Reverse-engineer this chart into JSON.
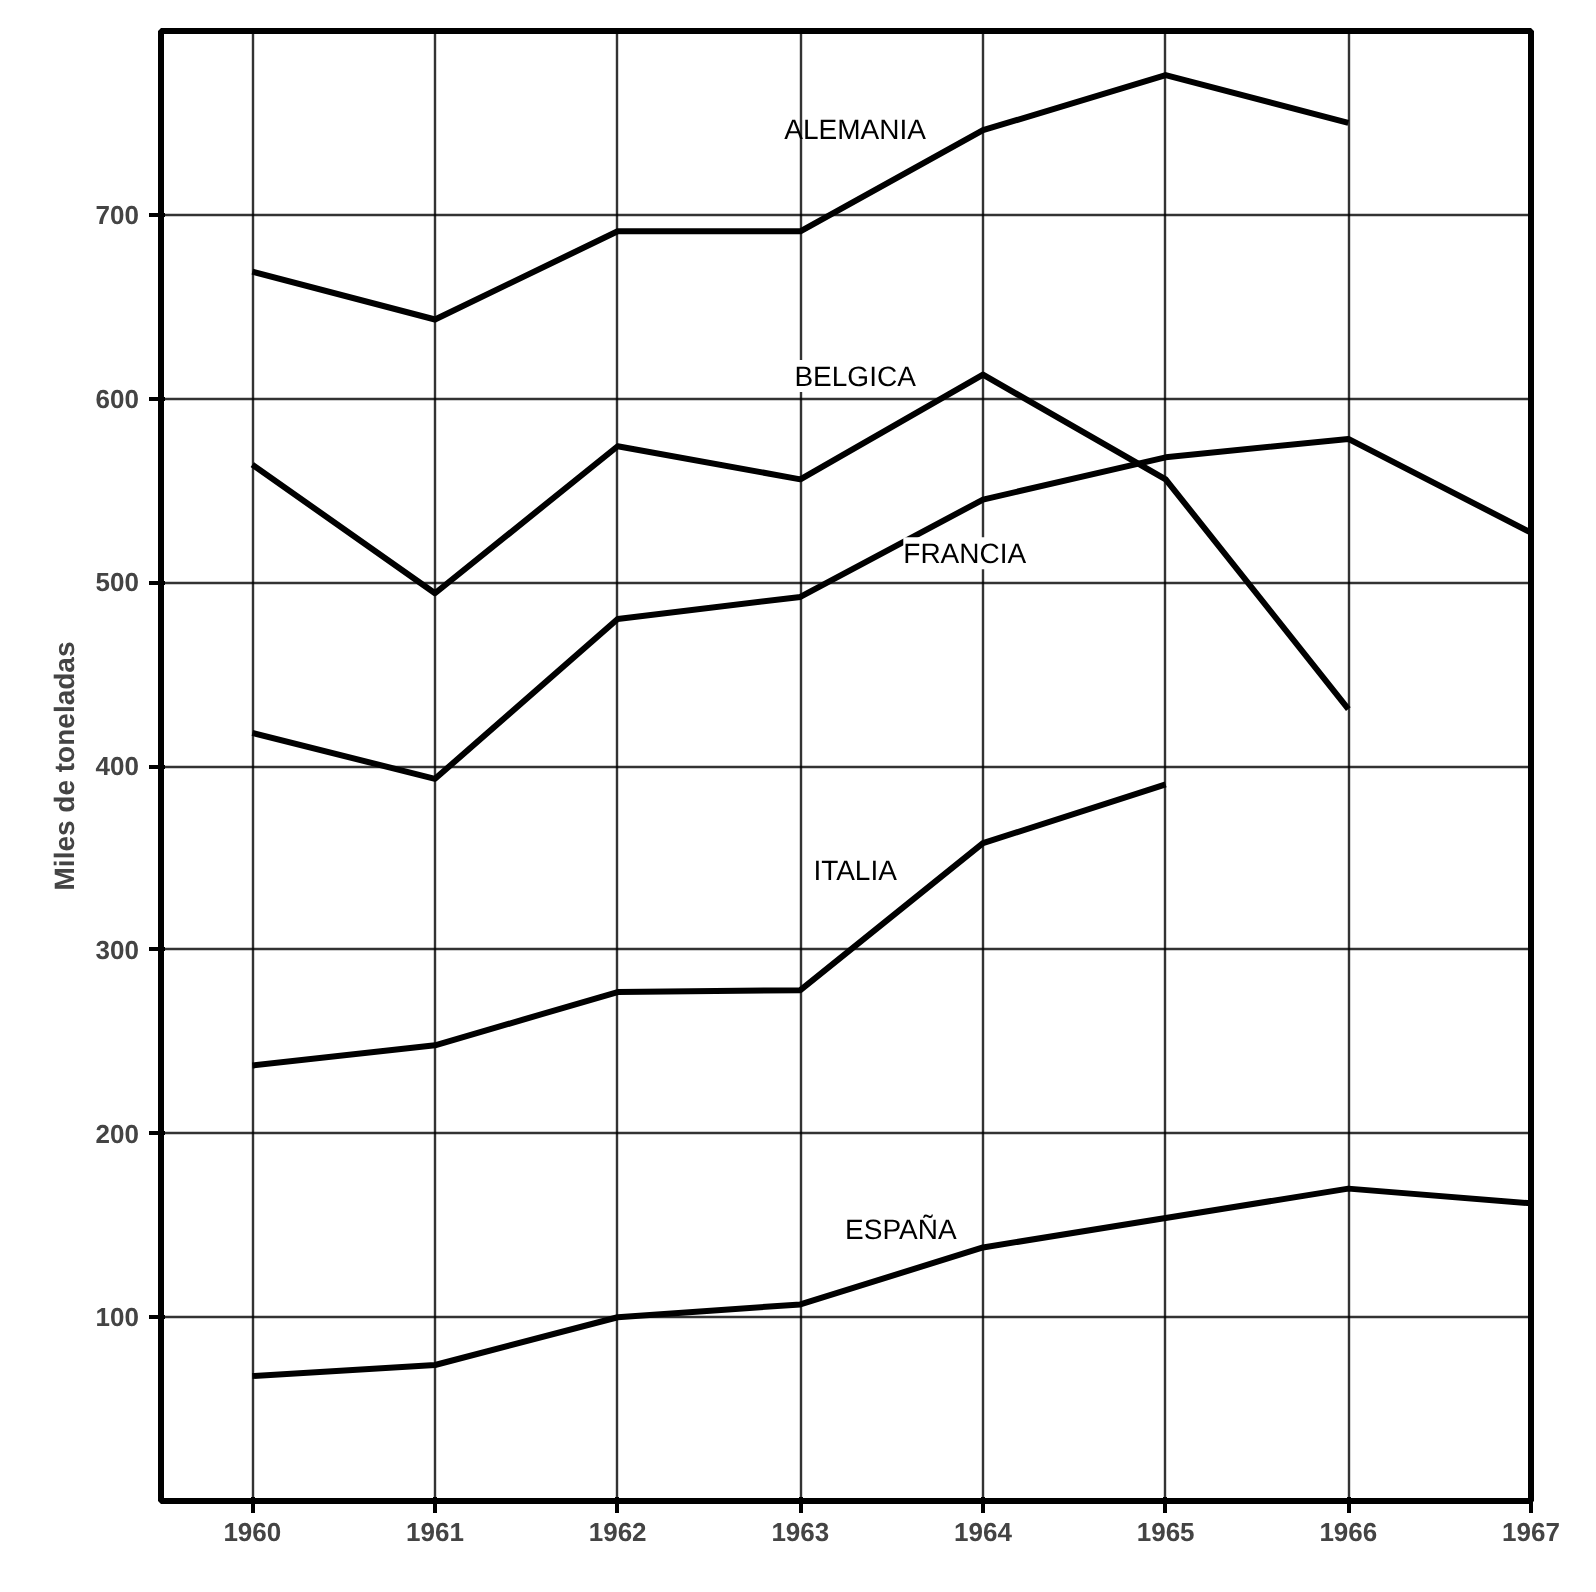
{
  "chart_data": {
    "type": "line",
    "ylabel": "Miles de toneladas",
    "x": [
      1960,
      1961,
      1962,
      1963,
      1964,
      1965,
      1966,
      1967
    ],
    "series": [
      {
        "name": "ALEMANIA",
        "color": "#000000",
        "values": [
          669,
          643,
          691,
          691,
          746,
          776,
          750,
          null
        ]
      },
      {
        "name": "BELGICA",
        "color": "#000000",
        "values": [
          564,
          494,
          574,
          556,
          613,
          556,
          431,
          null
        ]
      },
      {
        "name": "FRANCIA",
        "color": "#000000",
        "values": [
          418,
          393,
          480,
          492,
          545,
          568,
          578,
          527
        ]
      },
      {
        "name": "ITALIA",
        "color": "#000000",
        "values": [
          237,
          248,
          277,
          278,
          358,
          390,
          null,
          null
        ]
      },
      {
        "name": "ESPAÑA",
        "color": "#000000",
        "values": [
          68,
          74,
          100,
          107,
          138,
          154,
          170,
          162
        ]
      }
    ],
    "xlim": [
      1959.5,
      1967
    ],
    "ylim": [
      0,
      800
    ],
    "xticks": [
      1960,
      1961,
      1962,
      1963,
      1964,
      1965,
      1966,
      1967
    ],
    "yticks": [
      100,
      200,
      300,
      400,
      500,
      600,
      700
    ],
    "grid": true,
    "marker": "none",
    "line_style": "solid"
  }
}
